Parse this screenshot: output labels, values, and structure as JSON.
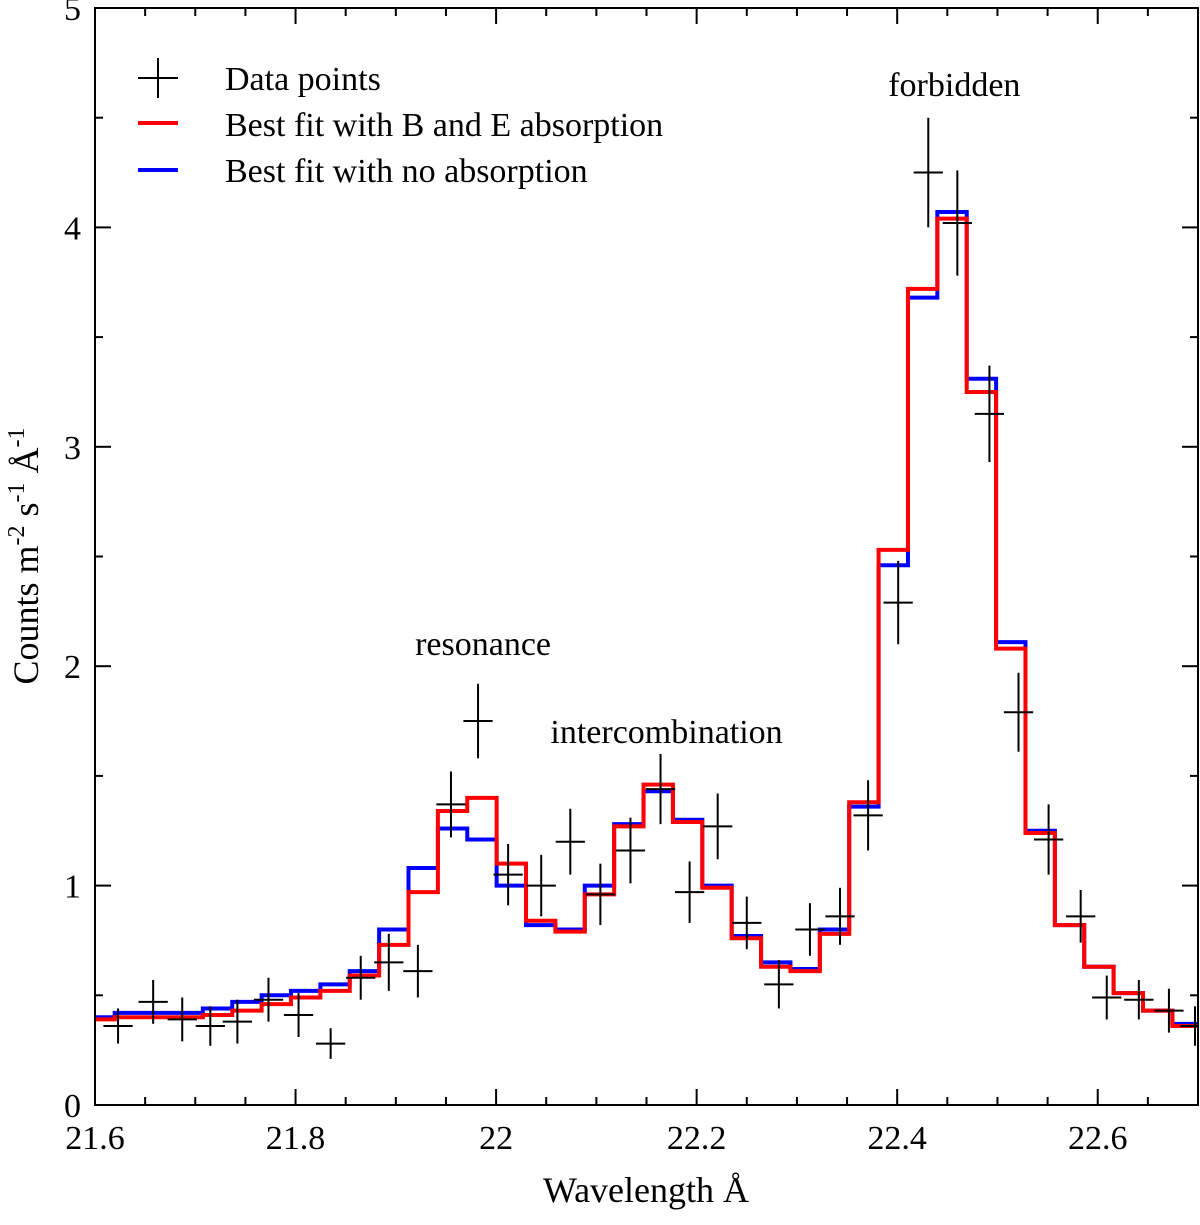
{
  "chart_data": {
    "type": "line",
    "title": "",
    "xlabel": "Wavelength Å",
    "ylabel": {
      "base": "Counts m",
      "exp1": "-2",
      "mid": " s",
      "exp2": "-1",
      "unit": " Å",
      "exp3": "-1"
    },
    "xlim": [
      21.6,
      22.7
    ],
    "ylim": [
      0,
      5
    ],
    "grid": false,
    "xticks": [
      {
        "value": 21.6,
        "label": "21.6"
      },
      {
        "value": 21.8,
        "label": "21.8"
      },
      {
        "value": 22.0,
        "label": "22"
      },
      {
        "value": 22.2,
        "label": "22.2"
      },
      {
        "value": 22.4,
        "label": "22.4"
      },
      {
        "value": 22.6,
        "label": "22.6"
      }
    ],
    "yticks": [
      {
        "value": 0,
        "label": "0"
      },
      {
        "value": 1,
        "label": "1"
      },
      {
        "value": 2,
        "label": "2"
      },
      {
        "value": 3,
        "label": "3"
      },
      {
        "value": 4,
        "label": "4"
      },
      {
        "value": 5,
        "label": "5"
      }
    ],
    "legend": {
      "position": "top-left",
      "entries": [
        {
          "label": "Data points",
          "color": "#000000",
          "kind": "cross"
        },
        {
          "label": "Best fit with B and E absorption",
          "color": "#ff0000",
          "kind": "line"
        },
        {
          "label": "Best fit with no absorption",
          "color": "#0000ff",
          "kind": "line"
        }
      ]
    },
    "annotations": [
      {
        "text": "resonance",
        "x": 21.987,
        "y": 2.05
      },
      {
        "text": "intercombination",
        "x": 22.17,
        "y": 1.65
      },
      {
        "text": "forbidden",
        "x": 22.457,
        "y": 4.6
      }
    ],
    "bin_width": 0.0293,
    "bin_centers": [
      21.605,
      21.6343,
      21.6636,
      21.6929,
      21.7222,
      21.7515,
      21.7808,
      21.8101,
      21.8394,
      21.8687,
      21.898,
      21.9273,
      21.9566,
      21.9859,
      22.0152,
      22.0445,
      22.0738,
      22.1031,
      22.1324,
      22.1617,
      22.191,
      22.2203,
      22.2496,
      22.2789,
      22.3082,
      22.3375,
      22.3668,
      22.3961,
      22.4254,
      22.4547,
      22.484,
      22.5133,
      22.5426,
      22.5719,
      22.6012,
      22.6305,
      22.6598,
      22.6891
    ],
    "series": [
      {
        "name": "Data points",
        "color": "#000000",
        "x": [
          21.623,
          21.658,
          21.687,
          21.715,
          21.742,
          21.773,
          21.803,
          21.835,
          21.865,
          21.893,
          21.922,
          21.955,
          21.982,
          22.012,
          22.045,
          22.074,
          22.104,
          22.134,
          22.164,
          22.193,
          22.221,
          22.25,
          22.282,
          22.313,
          22.343,
          22.371,
          22.401,
          22.431,
          22.46,
          22.492,
          22.521,
          22.551,
          22.583,
          22.609,
          22.641,
          22.671,
          22.697
        ],
        "y": [
          0.36,
          0.47,
          0.39,
          0.36,
          0.38,
          0.48,
          0.41,
          0.28,
          0.58,
          0.65,
          0.61,
          1.37,
          1.75,
          1.05,
          1.0,
          1.2,
          0.96,
          1.16,
          1.44,
          0.97,
          1.27,
          0.83,
          0.55,
          0.8,
          0.86,
          1.32,
          2.29,
          4.25,
          4.02,
          3.15,
          1.79,
          1.21,
          0.86,
          0.49,
          0.48,
          0.43,
          0.36
        ],
        "yerr": [
          0.08,
          0.1,
          0.1,
          0.09,
          0.1,
          0.1,
          0.1,
          0.07,
          0.1,
          0.13,
          0.12,
          0.15,
          0.17,
          0.14,
          0.14,
          0.15,
          0.14,
          0.15,
          0.16,
          0.14,
          0.15,
          0.12,
          0.11,
          0.12,
          0.13,
          0.16,
          0.19,
          0.25,
          0.24,
          0.22,
          0.18,
          0.16,
          0.12,
          0.1,
          0.09,
          0.1,
          0.09
        ],
        "xerr": 0.0146
      },
      {
        "name": "Best fit with no absorption",
        "color": "#0000ff",
        "y": [
          0.4,
          0.42,
          0.42,
          0.42,
          0.44,
          0.47,
          0.5,
          0.52,
          0.55,
          0.61,
          0.8,
          1.08,
          1.26,
          1.21,
          1.0,
          0.82,
          0.8,
          1.0,
          1.28,
          1.43,
          1.3,
          1.0,
          0.77,
          0.65,
          0.62,
          0.8,
          1.36,
          2.46,
          3.68,
          4.07,
          3.31,
          2.11,
          1.25,
          0.82,
          0.63,
          0.51,
          0.43,
          0.37
        ]
      },
      {
        "name": "Best fit with B and E absorption",
        "color": "#ff0000",
        "y": [
          0.39,
          0.4,
          0.4,
          0.4,
          0.41,
          0.43,
          0.46,
          0.49,
          0.52,
          0.59,
          0.73,
          0.97,
          1.34,
          1.4,
          1.1,
          0.84,
          0.79,
          0.96,
          1.27,
          1.46,
          1.29,
          0.99,
          0.76,
          0.63,
          0.61,
          0.78,
          1.38,
          2.53,
          3.72,
          4.04,
          3.25,
          2.08,
          1.24,
          0.82,
          0.63,
          0.51,
          0.43,
          0.36
        ]
      }
    ]
  }
}
